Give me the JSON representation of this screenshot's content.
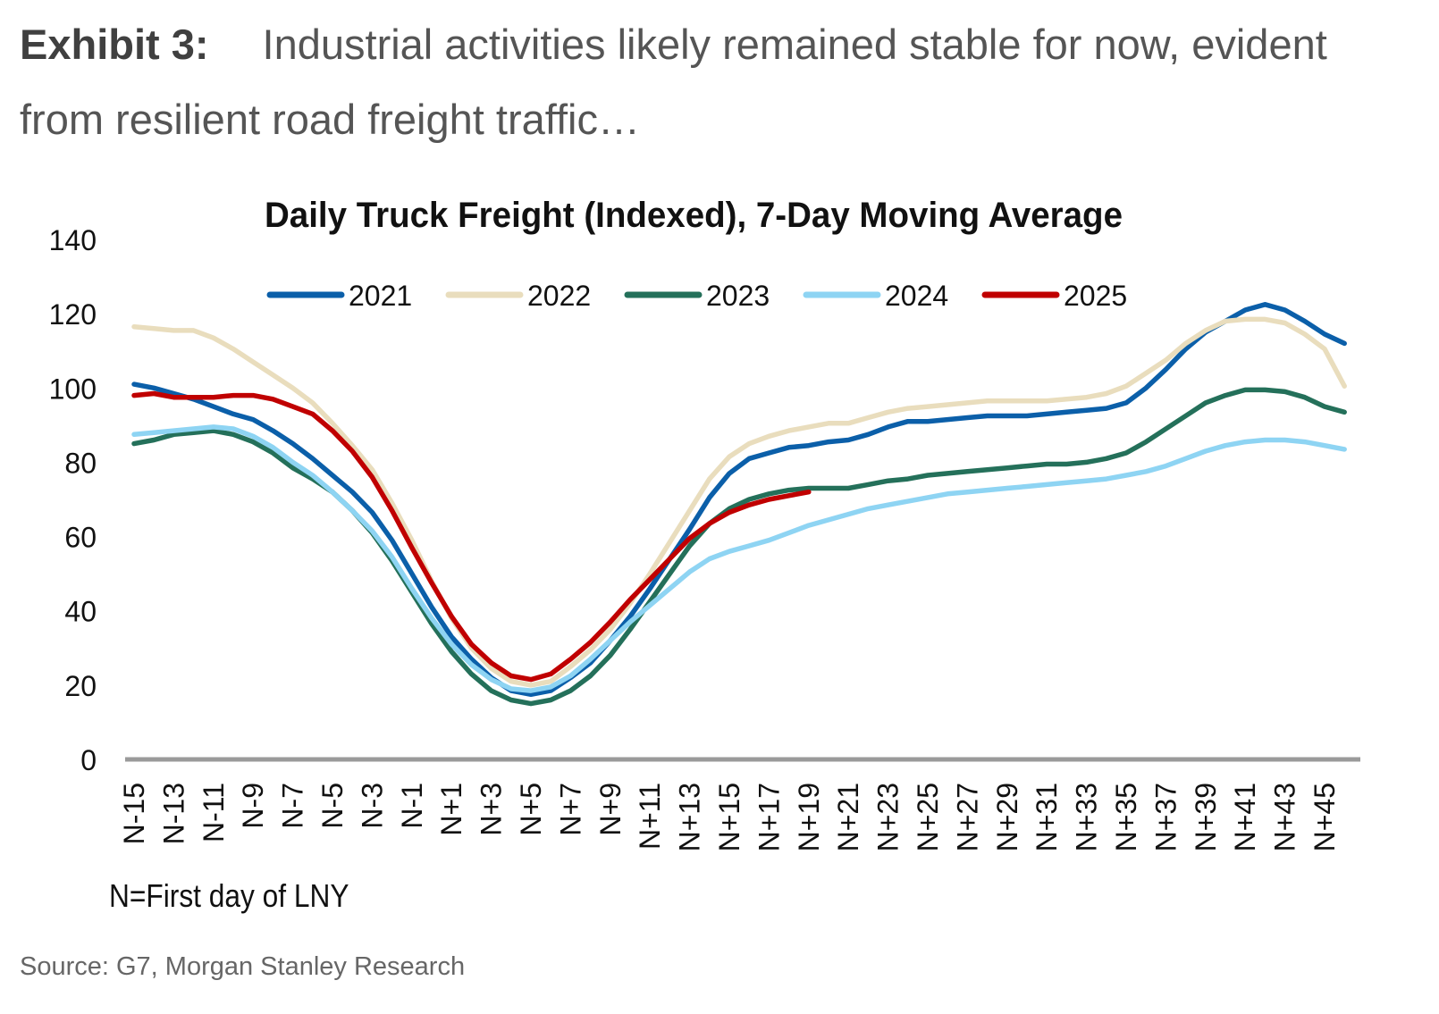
{
  "header": {
    "exhibit_label": "Exhibit 3:",
    "title": "Industrial activities likely remained stable for now, evident from resilient road freight traffic…"
  },
  "footnote": "N=First day of LNY",
  "source": "Source: G7, Morgan Stanley Research",
  "chart_data": {
    "type": "line",
    "title": "Daily Truck Freight (Indexed), 7-Day Moving Average",
    "xlabel": "",
    "ylabel": "",
    "ylim": [
      0,
      140
    ],
    "yticks": [
      "0",
      "20",
      "40",
      "60",
      "80",
      "100",
      "120",
      "140"
    ],
    "x_start": -15,
    "x_end": 46,
    "xtick_labels": [
      "N-15",
      "N-13",
      "N-11",
      "N-9",
      "N-7",
      "N-5",
      "N-3",
      "N-1",
      "N+1",
      "N+3",
      "N+5",
      "N+7",
      "N+9",
      "N+11",
      "N+13",
      "N+15",
      "N+17",
      "N+19",
      "N+21",
      "N+23",
      "N+25",
      "N+27",
      "N+29",
      "N+31",
      "N+33",
      "N+35",
      "N+37",
      "N+39",
      "N+41",
      "N+43",
      "N+45"
    ],
    "legend_position": "top",
    "grid": false,
    "series": [
      {
        "name": "2021",
        "color": "#0b5fa9",
        "values": [
          101,
          100,
          98.5,
          97,
          95,
          93,
          91.5,
          88.5,
          85,
          81,
          76.5,
          72,
          66.5,
          59,
          50,
          41,
          33,
          27,
          22,
          18.5,
          17.5,
          18.5,
          22,
          26,
          32,
          38.5,
          46,
          54,
          62,
          70.5,
          77,
          81,
          82.5,
          84,
          84.5,
          85.5,
          86,
          87.5,
          89.5,
          91,
          91,
          91.5,
          92,
          92.5,
          92.5,
          92.5,
          93,
          93.5,
          94,
          94.5,
          96,
          100,
          105,
          110.5,
          115,
          118,
          121,
          122.5,
          121,
          118,
          114.5,
          112
        ]
      },
      {
        "name": "2022",
        "color": "#e9ddbd",
        "values": [
          116.5,
          116,
          115.5,
          115.5,
          113.5,
          110.5,
          107,
          103.5,
          100,
          96,
          90.5,
          84.5,
          78,
          69,
          59,
          48,
          38,
          30,
          24.5,
          21,
          20,
          21,
          25,
          29.5,
          35,
          42,
          50,
          58.5,
          67,
          75.5,
          81.5,
          85,
          87,
          88.5,
          89.5,
          90.5,
          90.5,
          92,
          93.5,
          94.5,
          95,
          95.5,
          96,
          96.5,
          96.5,
          96.5,
          96.5,
          97,
          97.5,
          98.5,
          100.5,
          104,
          107.5,
          112,
          115.5,
          118,
          118.5,
          118.5,
          117.5,
          114.5,
          110.5,
          100.5
        ]
      },
      {
        "name": "2023",
        "color": "#24705a",
        "values": [
          85,
          86,
          87.5,
          88,
          88.5,
          87.5,
          85.5,
          82.5,
          78.5,
          75.5,
          72,
          67,
          61,
          53.5,
          45,
          36.5,
          29,
          23,
          18.5,
          16,
          15,
          16,
          18.5,
          22.5,
          28,
          35,
          42.5,
          50,
          57.5,
          63.5,
          67.5,
          70,
          71.5,
          72.5,
          73,
          73,
          73,
          74,
          75,
          75.5,
          76.5,
          77,
          77.5,
          78,
          78.5,
          79,
          79.5,
          79.5,
          80,
          81,
          82.5,
          85.5,
          89,
          92.5,
          96,
          98,
          99.5,
          99.5,
          99,
          97.5,
          95,
          93.5
        ]
      },
      {
        "name": "2024",
        "color": "#8ed4f3",
        "values": [
          87.5,
          88,
          88.5,
          89,
          89.5,
          89,
          87,
          84,
          80,
          76.5,
          72,
          67,
          61.5,
          54.5,
          46,
          38,
          31,
          25.5,
          21.5,
          19,
          18.5,
          19.5,
          22.5,
          27,
          32,
          37,
          41.5,
          46,
          50.5,
          54,
          56,
          57.5,
          59,
          61,
          63,
          64.5,
          66,
          67.5,
          68.5,
          69.5,
          70.5,
          71.5,
          72,
          72.5,
          73,
          73.5,
          74,
          74.5,
          75,
          75.5,
          76.5,
          77.5,
          79,
          81,
          83,
          84.5,
          85.5,
          86,
          86,
          85.5,
          84.5,
          83.5
        ]
      },
      {
        "name": "2025",
        "color": "#c00000",
        "values": [
          98,
          98.5,
          97.5,
          97.5,
          97.5,
          98,
          98,
          97,
          95,
          93,
          88.5,
          83,
          76,
          67,
          57,
          47.5,
          38.5,
          31,
          26,
          22.5,
          21.5,
          23,
          27,
          31.5,
          37,
          43,
          48.5,
          54,
          59.5,
          63.5,
          66.5,
          68.5,
          70,
          71,
          72
        ]
      }
    ]
  }
}
